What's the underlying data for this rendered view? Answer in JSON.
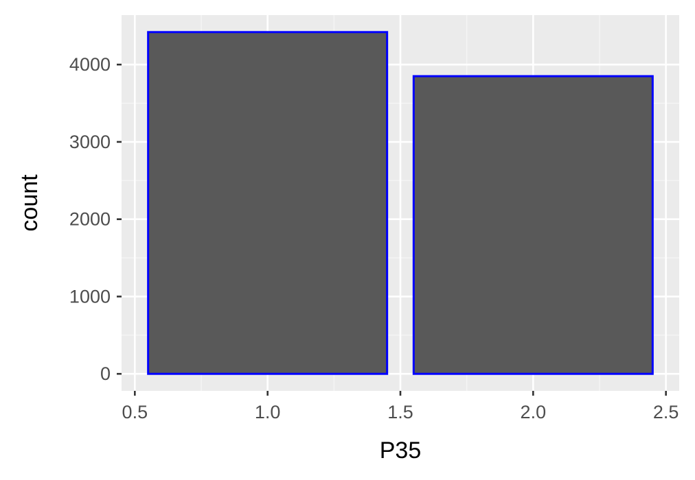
{
  "chart_data": {
    "type": "bar",
    "title": "",
    "xlabel": "P35",
    "ylabel": "count",
    "bars": [
      {
        "x": 1.0,
        "width": 0.9,
        "value": 4420
      },
      {
        "x": 2.0,
        "width": 0.9,
        "value": 3850
      }
    ],
    "xlim": [
      0.45,
      2.55
    ],
    "ylim": [
      -220,
      4640
    ],
    "x_ticks": [
      0.5,
      1.0,
      1.5,
      2.0,
      2.5
    ],
    "x_tick_labels": [
      "0.5",
      "1.0",
      "1.5",
      "2.0",
      "2.5"
    ],
    "y_ticks": [
      0,
      1000,
      2000,
      3000,
      4000
    ],
    "y_tick_labels": [
      "0",
      "1000",
      "2000",
      "3000",
      "4000"
    ],
    "grid": true,
    "legend": "none",
    "colors": {
      "bar_fill": "#595959",
      "bar_outline": "#0000ff",
      "panel_background": "#ebebeb",
      "grid_major": "#ffffff",
      "grid_minor": "#f5f5f5",
      "tick_mark": "#333333",
      "tick_label": "#4d4d4d",
      "axis_title": "#000000"
    }
  }
}
